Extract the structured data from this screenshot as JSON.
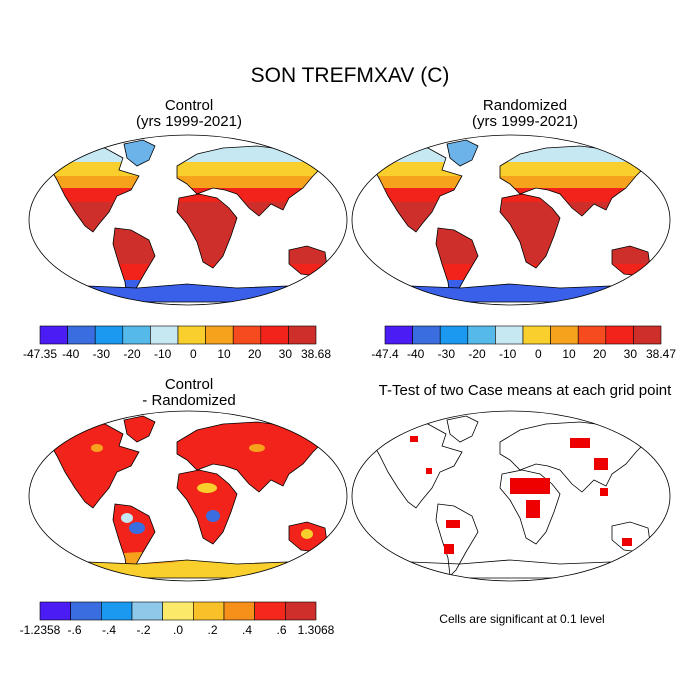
{
  "figure_title": "SON TREFMXAV (C)",
  "panels": [
    {
      "id": "control",
      "title_line1": "Control",
      "title_line2": "(yrs 1999-2021)"
    },
    {
      "id": "randomized",
      "title_line1": "Randomized",
      "title_line2": "(yrs 1999-2021)"
    },
    {
      "id": "difference",
      "title_line1": "Control",
      "title_line2": "- Randomized"
    },
    {
      "id": "ttest",
      "title_line1": "T-Test of two Case means at each grid point",
      "title_line2": ""
    }
  ],
  "colorbars": [
    {
      "id": "control-bar",
      "labels": [
        "-47.35",
        "-40",
        "-30",
        "-20",
        "-10",
        "0",
        "10",
        "20",
        "30",
        "38.68"
      ],
      "colors": [
        "#4c1cf5",
        "#3a6ee0",
        "#1b98f0",
        "#55baea",
        "#c6e8f2",
        "#f8cf2c",
        "#f6a21c",
        "#f64b1f",
        "#f2231b",
        "#cf2f2a"
      ]
    },
    {
      "id": "randomized-bar",
      "labels": [
        "-47.4",
        "-40",
        "-30",
        "-20",
        "-10",
        "0",
        "10",
        "20",
        "30",
        "38.47"
      ],
      "colors": [
        "#4c1cf5",
        "#3a6ee0",
        "#1b98f0",
        "#55baea",
        "#c6e8f2",
        "#f8cf2c",
        "#f6a21c",
        "#f64b1f",
        "#f2231b",
        "#cf2f2a"
      ]
    },
    {
      "id": "difference-bar",
      "labels": [
        "-1.2358",
        "-.6",
        "-.4",
        "-.2",
        ".0",
        ".2",
        ".4",
        ".6",
        "1.3068"
      ],
      "colors": [
        "#4c1cf5",
        "#3a6ee0",
        "#1b98f0",
        "#8fc9ea",
        "#fbe96a",
        "#f8c12a",
        "#f6901a",
        "#f5291b",
        "#cf2f2a"
      ]
    }
  ],
  "significance_note": "Cells are significant at 0.1 level",
  "colors": {
    "polar": "#3a5fe8",
    "icy": "#6cb3ea",
    "cool": "#c6e8f2",
    "temperate": "#f8cf2c",
    "warm": "#f6a21c",
    "hot": "#f2231b",
    "veryhot": "#cf2f2a",
    "diff_pos": "#f2231b",
    "diff_mid": "#f6a21c",
    "diff_neg": "#3a6ee0",
    "signif": "#ef0000"
  }
}
